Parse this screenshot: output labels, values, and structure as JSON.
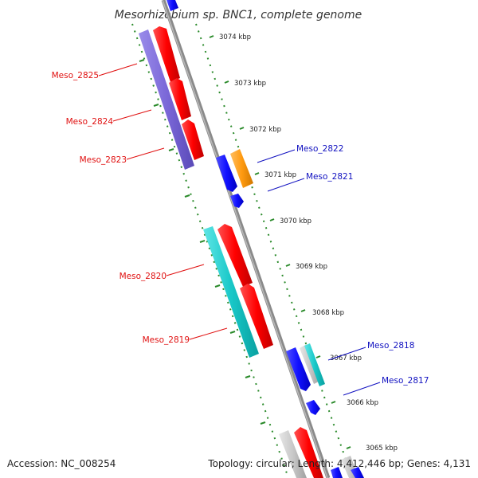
{
  "title": "Mesorhizobium sp. BNC1, complete genome",
  "accession": "Accession: NC_008254",
  "topology": "Topology: circular; Length: 4,412,446 bp; Genes: 4,131",
  "scale_ticks": [
    "3074 kbp",
    "3073 kbp",
    "3072 kbp",
    "3071 kbp",
    "3070 kbp",
    "3069 kbp",
    "3068 kbp",
    "3067 kbp",
    "3066 kbp",
    "3065 kbp"
  ],
  "gene_labels_left": [
    "Meso_2825",
    "Meso_2824",
    "Meso_2823",
    "Meso_2820",
    "Meso_2819"
  ],
  "gene_labels_right": [
    "Meso_2822",
    "Meso_2821",
    "Meso_2818",
    "Meso_2817"
  ],
  "colors": {
    "left_label": "#e01010",
    "right_label": "#1010c0",
    "backbone": "#808080",
    "red_gene": "#ff0000",
    "purple_gene": "#7b68d8",
    "cyan_gene": "#18c8c8",
    "blue_gene": "#1010ff",
    "orange_gene": "#ff9a10",
    "grey_gene": "#c8c8c8",
    "dotted_line": "#2a8a2a"
  }
}
